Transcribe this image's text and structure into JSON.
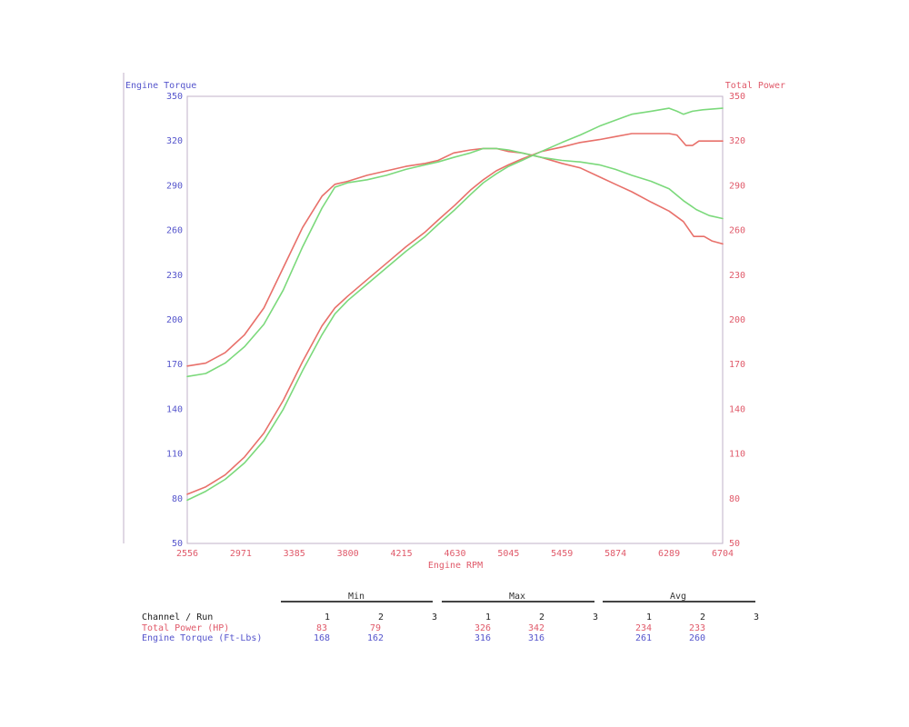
{
  "colors": {
    "torque_axis": "#5555cc",
    "power_axis": "#e05a6a",
    "run1_line": "#e8706a",
    "run2_line": "#7bd97b",
    "frame": "#c0b0c8",
    "rule": "#444444"
  },
  "chart_data": {
    "type": "line",
    "left_axis_label": "Engine Torque",
    "right_axis_label": "Total Power",
    "xlabel": "Engine RPM",
    "xlim": [
      2556,
      6704
    ],
    "ylim": [
      50,
      350
    ],
    "x_ticks": [
      "2556",
      "2971",
      "3385",
      "3800",
      "4215",
      "4630",
      "5045",
      "5459",
      "5874",
      "6289",
      "6704"
    ],
    "y_ticks_left": [
      "350",
      "320",
      "290",
      "260",
      "230",
      "200",
      "170",
      "140",
      "110",
      "80",
      "50"
    ],
    "y_ticks_right": [
      "350",
      "320",
      "290",
      "260",
      "230",
      "200",
      "170",
      "140",
      "110",
      "80",
      "50"
    ],
    "grid": false,
    "series": [
      {
        "channel": "Engine Torque",
        "run": "1",
        "color": "#e8706a",
        "points": [
          [
            2556,
            169
          ],
          [
            2700,
            171
          ],
          [
            2850,
            178
          ],
          [
            3000,
            190
          ],
          [
            3150,
            208
          ],
          [
            3300,
            235
          ],
          [
            3450,
            262
          ],
          [
            3600,
            283
          ],
          [
            3700,
            291
          ],
          [
            3800,
            293
          ],
          [
            3950,
            297
          ],
          [
            4100,
            300
          ],
          [
            4250,
            303
          ],
          [
            4400,
            305
          ],
          [
            4500,
            307
          ],
          [
            4620,
            312
          ],
          [
            4750,
            314
          ],
          [
            4850,
            315
          ],
          [
            4950,
            315
          ],
          [
            5045,
            313
          ],
          [
            5150,
            312
          ],
          [
            5300,
            309
          ],
          [
            5459,
            305
          ],
          [
            5600,
            302
          ],
          [
            5750,
            296
          ],
          [
            5874,
            291
          ],
          [
            6000,
            286
          ],
          [
            6150,
            279
          ],
          [
            6289,
            273
          ],
          [
            6400,
            266
          ],
          [
            6480,
            256
          ],
          [
            6560,
            256
          ],
          [
            6620,
            253
          ],
          [
            6704,
            251
          ]
        ]
      },
      {
        "channel": "Engine Torque",
        "run": "2",
        "color": "#7bd97b",
        "points": [
          [
            2556,
            162
          ],
          [
            2700,
            164
          ],
          [
            2850,
            171
          ],
          [
            3000,
            182
          ],
          [
            3150,
            197
          ],
          [
            3300,
            220
          ],
          [
            3450,
            249
          ],
          [
            3600,
            275
          ],
          [
            3700,
            289
          ],
          [
            3800,
            292
          ],
          [
            3950,
            294
          ],
          [
            4100,
            297
          ],
          [
            4250,
            301
          ],
          [
            4400,
            304
          ],
          [
            4500,
            306
          ],
          [
            4620,
            309
          ],
          [
            4750,
            312
          ],
          [
            4850,
            315
          ],
          [
            4950,
            315
          ],
          [
            5045,
            314
          ],
          [
            5150,
            312
          ],
          [
            5300,
            309
          ],
          [
            5459,
            307
          ],
          [
            5600,
            306
          ],
          [
            5750,
            304
          ],
          [
            5874,
            301
          ],
          [
            6000,
            297
          ],
          [
            6150,
            293
          ],
          [
            6289,
            288
          ],
          [
            6400,
            280
          ],
          [
            6500,
            274
          ],
          [
            6600,
            270
          ],
          [
            6704,
            268
          ]
        ]
      },
      {
        "channel": "Total Power",
        "run": "1",
        "color": "#e8706a",
        "points": [
          [
            2556,
            83
          ],
          [
            2700,
            88
          ],
          [
            2850,
            96
          ],
          [
            3000,
            108
          ],
          [
            3150,
            124
          ],
          [
            3300,
            146
          ],
          [
            3450,
            172
          ],
          [
            3600,
            196
          ],
          [
            3700,
            208
          ],
          [
            3800,
            216
          ],
          [
            3950,
            227
          ],
          [
            4100,
            238
          ],
          [
            4250,
            249
          ],
          [
            4400,
            259
          ],
          [
            4500,
            267
          ],
          [
            4630,
            277
          ],
          [
            4750,
            287
          ],
          [
            4850,
            294
          ],
          [
            4950,
            300
          ],
          [
            5045,
            304
          ],
          [
            5150,
            308
          ],
          [
            5300,
            313
          ],
          [
            5459,
            316
          ],
          [
            5600,
            319
          ],
          [
            5750,
            321
          ],
          [
            5874,
            323
          ],
          [
            6000,
            325
          ],
          [
            6150,
            325
          ],
          [
            6289,
            325
          ],
          [
            6350,
            324
          ],
          [
            6420,
            317
          ],
          [
            6470,
            317
          ],
          [
            6520,
            320
          ],
          [
            6600,
            320
          ],
          [
            6704,
            320
          ]
        ]
      },
      {
        "channel": "Total Power",
        "run": "2",
        "color": "#7bd97b",
        "points": [
          [
            2556,
            79
          ],
          [
            2700,
            85
          ],
          [
            2850,
            93
          ],
          [
            3000,
            104
          ],
          [
            3150,
            119
          ],
          [
            3300,
            140
          ],
          [
            3450,
            166
          ],
          [
            3600,
            190
          ],
          [
            3700,
            204
          ],
          [
            3800,
            213
          ],
          [
            3950,
            224
          ],
          [
            4100,
            235
          ],
          [
            4250,
            246
          ],
          [
            4400,
            256
          ],
          [
            4500,
            264
          ],
          [
            4630,
            274
          ],
          [
            4750,
            284
          ],
          [
            4850,
            292
          ],
          [
            4950,
            298
          ],
          [
            5045,
            303
          ],
          [
            5150,
            307
          ],
          [
            5300,
            313
          ],
          [
            5459,
            319
          ],
          [
            5600,
            324
          ],
          [
            5750,
            330
          ],
          [
            5874,
            334
          ],
          [
            6000,
            338
          ],
          [
            6150,
            340
          ],
          [
            6289,
            342
          ],
          [
            6350,
            340
          ],
          [
            6400,
            338
          ],
          [
            6470,
            340
          ],
          [
            6550,
            341
          ],
          [
            6704,
            342
          ]
        ]
      }
    ]
  },
  "summary": {
    "groups": [
      "Min",
      "Max",
      "Avg"
    ],
    "header_label": "Channel / Run",
    "run_numbers": [
      "1",
      "2",
      "3"
    ],
    "rows": [
      {
        "label": "Total Power (HP)",
        "min": [
          "83",
          "79",
          ""
        ],
        "max": [
          "326",
          "342",
          ""
        ],
        "avg": [
          "234",
          "233",
          ""
        ]
      },
      {
        "label": "Engine Torque (Ft-Lbs)",
        "min": [
          "168",
          "162",
          ""
        ],
        "max": [
          "316",
          "316",
          ""
        ],
        "avg": [
          "261",
          "260",
          ""
        ]
      }
    ]
  }
}
